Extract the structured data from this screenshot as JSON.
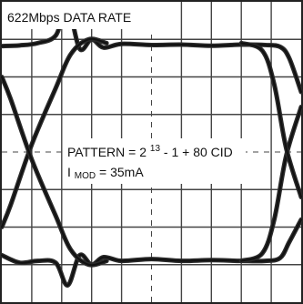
{
  "chart_data": {
    "type": "line",
    "title": "622Mbps DATA RATE",
    "annotations": {
      "pattern_prefix": "PATTERN = 2",
      "pattern_exponent": "13",
      "pattern_suffix": " - 1 + 80 CID",
      "imod_prefix": "I",
      "imod_subscript": "MOD",
      "imod_suffix": " = 35mA"
    },
    "xlim": [
      0,
      10
    ],
    "ylim": [
      0,
      8
    ],
    "grid": true,
    "grid_divisions": {
      "x": 10,
      "y": 8
    },
    "series": [
      {
        "upper": [
          [
            0,
            6.82
          ],
          [
            0.6,
            6.84
          ],
          [
            1.2,
            6.9
          ],
          [
            1.8,
            7.1
          ],
          [
            2.2,
            7.85
          ],
          [
            2.6,
            6.75
          ],
          [
            3.0,
            7.0
          ],
          [
            3.4,
            6.78
          ],
          [
            4,
            6.88
          ],
          [
            5,
            6.85
          ],
          [
            6,
            6.86
          ],
          [
            7,
            6.83
          ],
          [
            8,
            6.86
          ],
          [
            8.8,
            6.85
          ],
          [
            9.3,
            6.8
          ],
          [
            9.6,
            6.5
          ],
          [
            10,
            5.6
          ]
        ],
        "lower": [
          [
            0,
            1.25
          ],
          [
            0.6,
            1.05
          ],
          [
            1.2,
            1.1
          ],
          [
            1.8,
            1.05
          ],
          [
            2.2,
            0.45
          ],
          [
            2.6,
            1.25
          ],
          [
            3.0,
            1.0
          ],
          [
            3.4,
            1.2
          ],
          [
            4,
            1.1
          ],
          [
            5,
            1.15
          ],
          [
            6,
            1.1
          ],
          [
            7,
            1.12
          ],
          [
            8,
            1.1
          ],
          [
            8.8,
            1.1
          ],
          [
            9.3,
            1.18
          ],
          [
            9.6,
            1.6
          ],
          [
            10,
            2.2
          ]
        ],
        "rise": [
          [
            0,
            2.0
          ],
          [
            0.3,
            2.6
          ],
          [
            1.0,
            4.2
          ],
          [
            1.8,
            5.7
          ],
          [
            2.3,
            6.6
          ],
          [
            2.9,
            7.0
          ],
          [
            3.5,
            6.9
          ]
        ],
        "fall": [
          [
            0,
            6.0
          ],
          [
            0.3,
            5.4
          ],
          [
            1.0,
            3.8
          ],
          [
            1.8,
            2.3
          ],
          [
            2.3,
            1.4
          ],
          [
            2.9,
            1.0
          ],
          [
            3.5,
            1.1
          ]
        ],
        "rise2": [
          [
            8.0,
            1.1
          ],
          [
            8.7,
            1.3
          ],
          [
            9.1,
            2.2
          ],
          [
            9.5,
            3.9
          ],
          [
            10,
            5.2
          ]
        ],
        "fall2": [
          [
            8.0,
            6.9
          ],
          [
            8.7,
            6.7
          ],
          [
            9.1,
            5.8
          ],
          [
            9.5,
            4.1
          ],
          [
            10,
            2.8
          ]
        ]
      }
    ]
  }
}
